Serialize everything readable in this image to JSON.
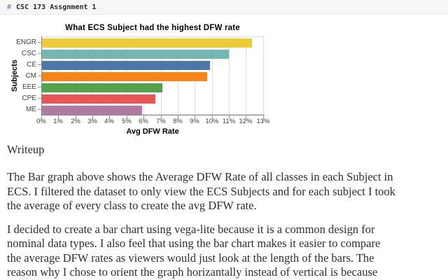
{
  "header": {
    "hash": "#",
    "title": "CSC 173 Assgnment 1"
  },
  "chart_data": {
    "type": "bar",
    "orientation": "horizontal",
    "title": "What ECS Subject had the highest DFW rate",
    "xlabel": "Avg DFW Rate",
    "ylabel": "Subjects",
    "categories": [
      "ENGR",
      "CSC",
      "CE",
      "CM",
      "EEE",
      "CPE",
      "ME"
    ],
    "values": [
      12.3,
      10.95,
      9.85,
      9.7,
      7.05,
      6.65,
      5.85
    ],
    "colors": [
      "#EECA3B",
      "#72B7B2",
      "#4C78A8",
      "#F58518",
      "#54A24B",
      "#E45756",
      "#B279A2"
    ],
    "xlim": [
      0,
      13.05
    ],
    "xticks": [
      0,
      1,
      2,
      3,
      4,
      5,
      6,
      7,
      8,
      9,
      10,
      11,
      12,
      13
    ],
    "xtick_suffix": "%",
    "grid": true,
    "legend": "none",
    "grid_color": "#dddddd",
    "axis_color": "#888888"
  },
  "writeup": {
    "heading": "Writeup",
    "paragraphs": [
      [
        "The Bar graph above shows the Average DFW Rate of all classes in each Subject in",
        "ECS. I filtered the dataset to only view the ECS Subjects and for each subject I took",
        "the average of every class to create the avg DFW rate."
      ],
      [
        "I decided to create a bar chart using vega-lite because it is a common design for",
        "nominal data types. I also feel that using the bar chart makes it easier to compare",
        "the average DFW rates as viewers would just look at the length of the bars. The",
        "reason why I chose to orient the graph horizantally instead of vertical is because"
      ]
    ]
  },
  "colors": {
    "page_bg": "#ffffff",
    "header_bg": "#f6f6f6",
    "header_hash": "#7b91a8",
    "header_text": "#24292e",
    "body_text": "#2f2f2f"
  }
}
